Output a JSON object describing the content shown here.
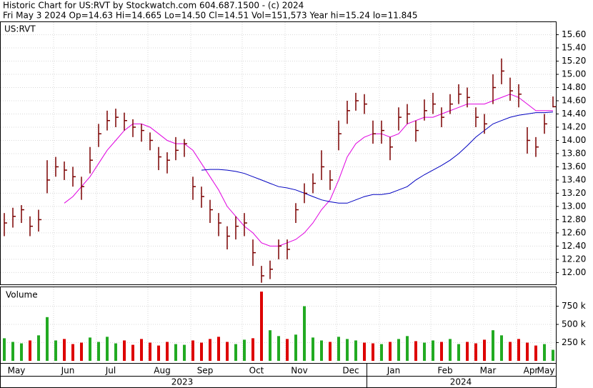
{
  "chart_data": {
    "type": "ohlc",
    "title": "Historic Chart for US:RVT by Stockwatch.com 604.687.1500 - (c) 2024",
    "subtitle": "Fri May  3 2024  Op=14.63  Hi=14.665  Lo=14.50  Cl=14.51  Vol=151,573  Year hi=15.24  lo=11.845",
    "legend": "US:RVT",
    "color": "#7a0000",
    "categories": [
      "May",
      null,
      null,
      null,
      null,
      null,
      "Jun",
      null,
      null,
      null,
      null,
      "Jul",
      null,
      null,
      null,
      null,
      null,
      "Aug",
      null,
      null,
      null,
      null,
      "Sep",
      null,
      null,
      null,
      null,
      null,
      "Oct",
      null,
      null,
      null,
      null,
      "Nov",
      null,
      null,
      null,
      null,
      null,
      "Dec",
      null,
      null,
      null,
      null,
      "Jan",
      null,
      null,
      null,
      null,
      null,
      "Feb",
      null,
      null,
      null,
      null,
      "Mar",
      null,
      null,
      null,
      null,
      "Apr",
      null,
      null,
      null,
      "May"
    ],
    "high": [
      12.9,
      12.98,
      13.02,
      12.85,
      12.95,
      13.7,
      13.75,
      13.68,
      13.6,
      13.45,
      13.9,
      14.25,
      14.45,
      14.48,
      14.42,
      14.32,
      14.25,
      14.12,
      13.9,
      13.82,
      14.05,
      14.02,
      13.45,
      13.3,
      13.1,
      12.9,
      12.7,
      12.85,
      12.9,
      12.5,
      12.1,
      12.18,
      12.5,
      12.5,
      13.05,
      13.35,
      13.5,
      13.85,
      13.55,
      14.3,
      14.6,
      14.72,
      14.7,
      14.3,
      14.3,
      14.05,
      14.5,
      14.55,
      14.3,
      14.62,
      14.72,
      14.5,
      14.7,
      14.85,
      14.8,
      14.5,
      14.4,
      15.0,
      15.24,
      14.95,
      14.85,
      14.2,
      14.05,
      14.4,
      14.665
    ],
    "low": [
      12.55,
      12.68,
      12.75,
      12.55,
      12.62,
      13.2,
      13.45,
      13.4,
      13.3,
      13.1,
      13.5,
      13.9,
      14.15,
      14.2,
      14.15,
      14.05,
      13.98,
      13.85,
      13.55,
      13.5,
      13.7,
      13.75,
      13.1,
      12.98,
      12.75,
      12.55,
      12.35,
      12.5,
      12.55,
      12.1,
      11.845,
      11.9,
      12.2,
      12.2,
      12.75,
      13.05,
      13.2,
      13.4,
      13.25,
      13.85,
      14.25,
      14.45,
      14.4,
      13.95,
      13.95,
      13.7,
      14.15,
      14.25,
      13.98,
      14.3,
      14.4,
      14.2,
      14.4,
      14.55,
      14.5,
      14.2,
      14.1,
      14.55,
      14.85,
      14.6,
      14.5,
      13.8,
      13.75,
      14.1,
      14.5
    ],
    "close": [
      12.75,
      12.85,
      12.95,
      12.7,
      12.8,
      13.4,
      13.6,
      13.55,
      13.45,
      13.3,
      13.7,
      14.1,
      14.3,
      14.35,
      14.3,
      14.2,
      14.15,
      14.0,
      13.75,
      13.7,
      13.85,
      13.95,
      13.3,
      13.15,
      12.95,
      12.75,
      12.55,
      12.7,
      12.75,
      12.3,
      11.95,
      12.05,
      12.4,
      12.35,
      12.95,
      13.2,
      13.35,
      13.6,
      13.4,
      14.1,
      14.45,
      14.6,
      14.55,
      14.1,
      14.15,
      13.9,
      14.35,
      14.4,
      14.15,
      14.45,
      14.55,
      14.35,
      14.55,
      14.7,
      14.65,
      14.35,
      14.25,
      14.8,
      15.05,
      14.75,
      14.7,
      14.0,
      13.9,
      14.25,
      14.51
    ],
    "series": [
      {
        "color": "#e000e0",
        "values": [
          null,
          null,
          null,
          null,
          null,
          null,
          null,
          13.05,
          13.15,
          13.3,
          13.45,
          13.65,
          13.85,
          14.0,
          14.15,
          14.25,
          14.25,
          14.2,
          14.1,
          14.0,
          13.95,
          13.95,
          13.85,
          13.65,
          13.45,
          13.25,
          13.0,
          12.85,
          12.7,
          12.6,
          12.45,
          12.4,
          12.4,
          12.45,
          12.5,
          12.6,
          12.75,
          12.95,
          13.1,
          13.4,
          13.75,
          13.95,
          14.05,
          14.1,
          14.1,
          14.05,
          14.1,
          14.25,
          14.3,
          14.35,
          14.35,
          14.4,
          14.45,
          14.5,
          14.55,
          14.55,
          14.55,
          14.6,
          14.65,
          14.7,
          14.65,
          14.55,
          14.45,
          14.45,
          14.45
        ]
      },
      {
        "color": "#0000c0",
        "values": [
          null,
          null,
          null,
          null,
          null,
          null,
          null,
          null,
          null,
          null,
          null,
          null,
          null,
          null,
          null,
          null,
          null,
          null,
          null,
          null,
          null,
          null,
          null,
          13.55,
          13.56,
          13.56,
          13.55,
          13.53,
          13.5,
          13.45,
          13.4,
          13.35,
          13.3,
          13.28,
          13.25,
          13.2,
          13.15,
          13.1,
          13.07,
          13.05,
          13.05,
          13.1,
          13.15,
          13.18,
          13.18,
          13.2,
          13.25,
          13.3,
          13.4,
          13.48,
          13.55,
          13.62,
          13.7,
          13.8,
          13.92,
          14.05,
          14.15,
          14.25,
          14.3,
          14.35,
          14.38,
          14.4,
          14.42,
          14.42,
          14.43
        ]
      }
    ],
    "ylim": [
      11.82,
      15.79
    ],
    "yticks": [
      {
        "value": 12,
        "label": "12.00"
      },
      {
        "value": 12.2,
        "label": "12.20"
      },
      {
        "value": 12.4,
        "label": "12.40"
      },
      {
        "value": 12.6,
        "label": "12.60"
      },
      {
        "value": 12.8,
        "label": "12.80"
      },
      {
        "value": 13,
        "label": "13.00"
      },
      {
        "value": 13.2,
        "label": "13.20"
      },
      {
        "value": 13.4,
        "label": "13.40"
      },
      {
        "value": 13.6,
        "label": "13.60"
      },
      {
        "value": 13.8,
        "label": "13.80"
      },
      {
        "value": 14,
        "label": "14.00"
      },
      {
        "value": 14.2,
        "label": "14.20"
      },
      {
        "value": 14.4,
        "label": "14.40"
      },
      {
        "value": 14.6,
        "label": "14.60"
      },
      {
        "value": 14.8,
        "label": "14.80"
      },
      {
        "value": 15,
        "label": "15.00"
      },
      {
        "value": 15.2,
        "label": "15.20"
      },
      {
        "value": 15.4,
        "label": "15.40"
      },
      {
        "value": 15.6,
        "label": "15.60"
      }
    ],
    "grid": true,
    "years": [
      "2023",
      "2024"
    ],
    "volume": {
      "label": "Volume",
      "color_up": "#22aa22",
      "color_down": "#dd0000",
      "values": [
        310000,
        260000,
        240000,
        280000,
        350000,
        600000,
        280000,
        300000,
        230000,
        250000,
        320000,
        260000,
        330000,
        240000,
        280000,
        220000,
        300000,
        250000,
        210000,
        260000,
        230000,
        220000,
        280000,
        250000,
        300000,
        330000,
        260000,
        230000,
        290000,
        310000,
        950000,
        420000,
        340000,
        300000,
        360000,
        750000,
        320000,
        280000,
        260000,
        330000,
        300000,
        280000,
        250000,
        240000,
        230000,
        260000,
        300000,
        340000,
        270000,
        250000,
        280000,
        260000,
        300000,
        230000,
        260000,
        240000,
        290000,
        420000,
        350000,
        260000,
        300000,
        250000,
        210000,
        230000,
        151573
      ],
      "ylim": [
        0,
        1010000
      ],
      "yticks": [
        {
          "value": 250000,
          "label": "250 k"
        },
        {
          "value": 500000,
          "label": "500 k"
        },
        {
          "value": 750000,
          "label": "750 k"
        }
      ]
    }
  }
}
